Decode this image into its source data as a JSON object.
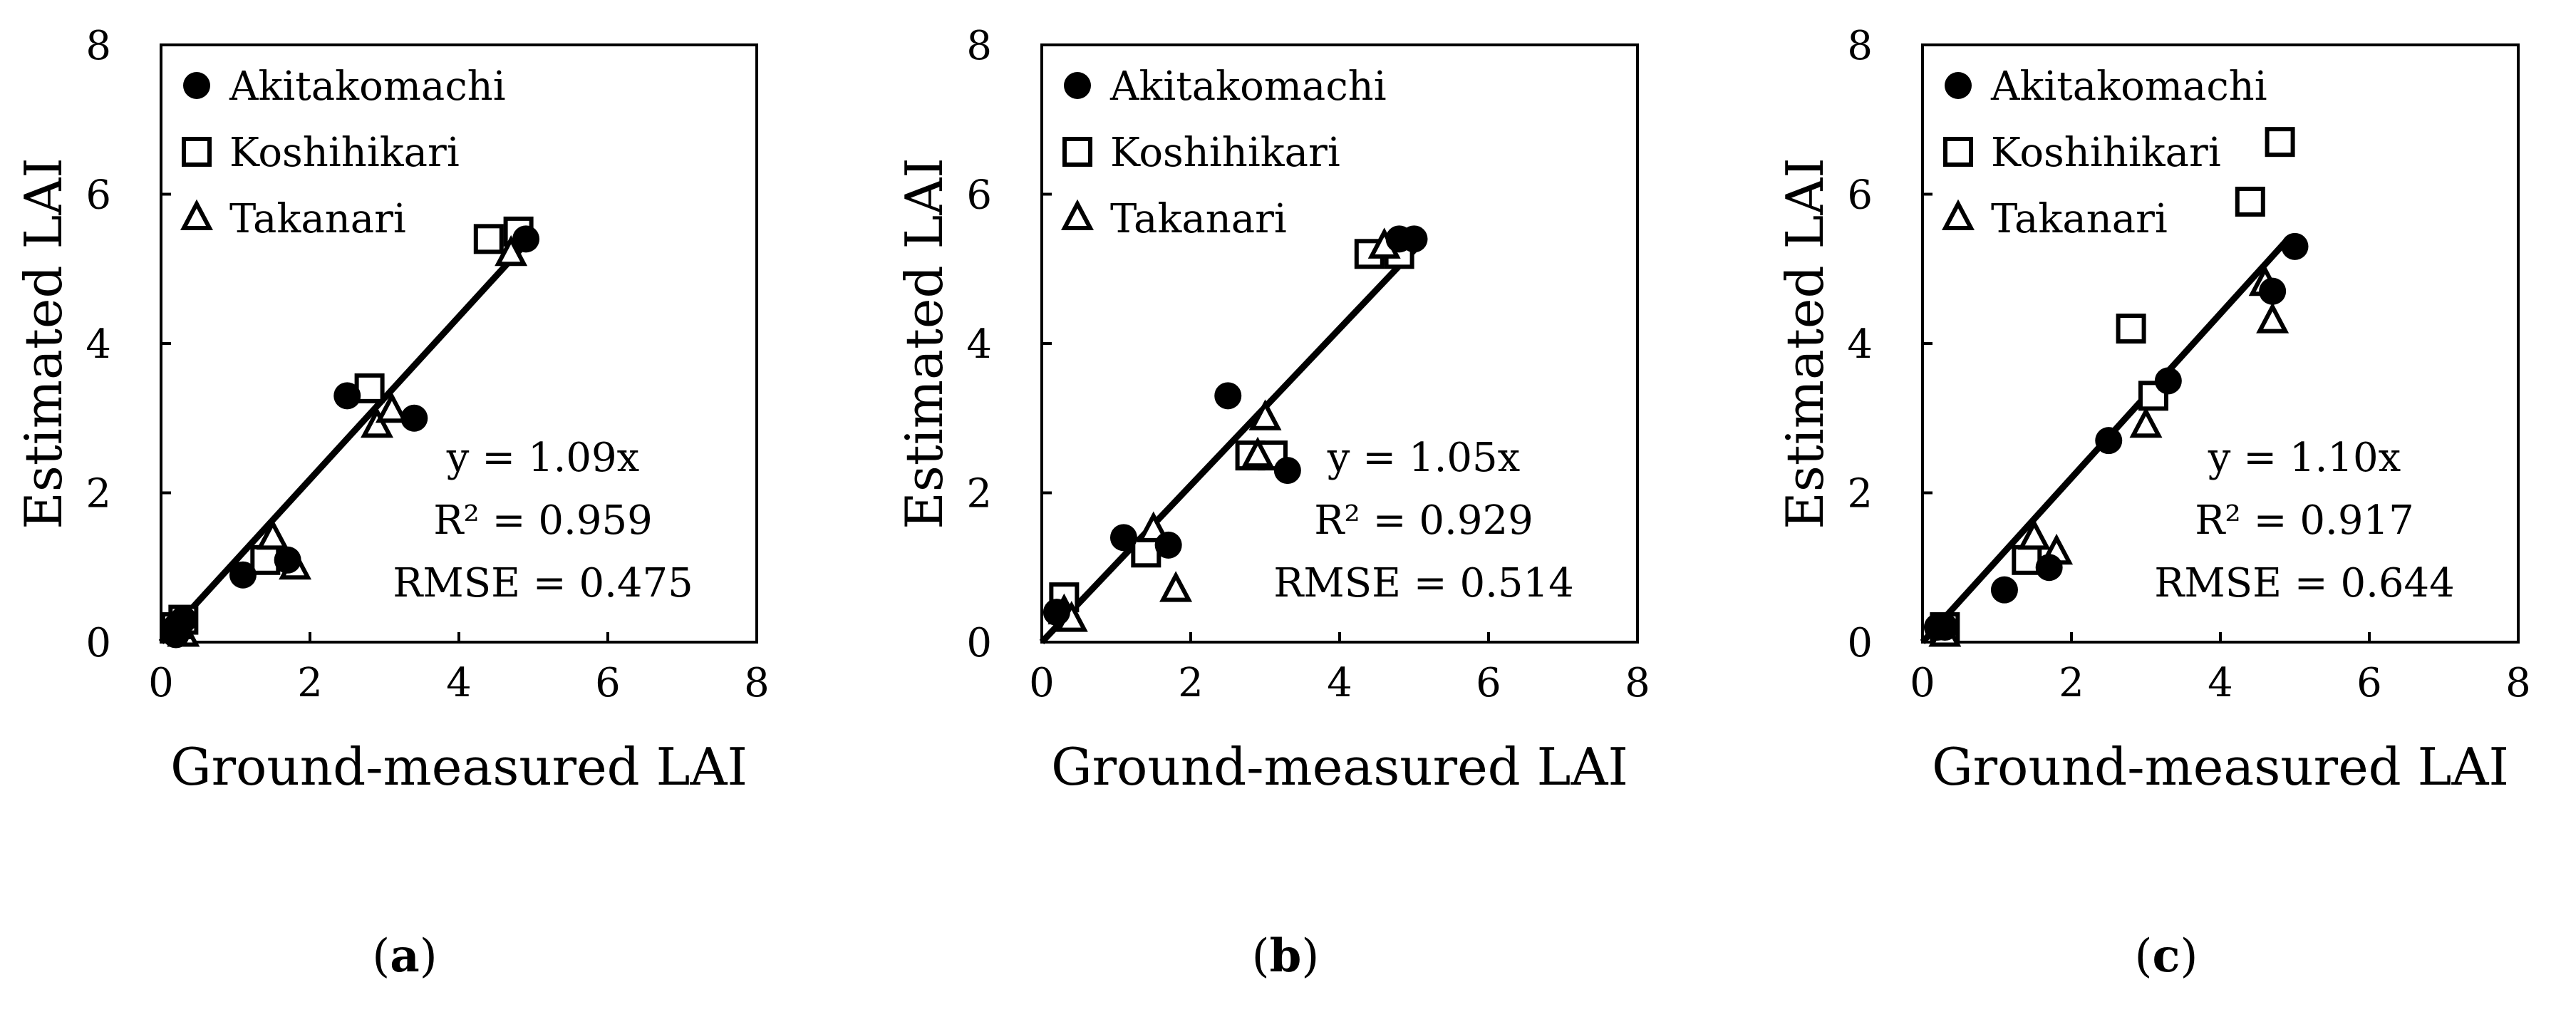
{
  "chart_data": [
    {
      "type": "scatter",
      "panel_label": "a",
      "xlabel": "Ground-measured LAI",
      "ylabel": "Estimated LAI",
      "xlim": [
        0,
        8
      ],
      "ylim": [
        0,
        8
      ],
      "xticks": [
        "0",
        "2",
        "4",
        "6",
        "8"
      ],
      "yticks": [
        "0",
        "2",
        "4",
        "6",
        "8"
      ],
      "legend_position": "top-left",
      "series": [
        {
          "name": "Akitakomachi",
          "marker": "filled-circle",
          "points": [
            [
              0.2,
              0.2
            ],
            [
              0.3,
              0.3
            ],
            [
              0.2,
              0.1
            ],
            [
              1.1,
              0.9
            ],
            [
              1.7,
              1.1
            ],
            [
              2.5,
              3.3
            ],
            [
              3.4,
              3.0
            ],
            [
              4.9,
              5.4
            ]
          ]
        },
        {
          "name": "Koshihikari",
          "marker": "open-square",
          "points": [
            [
              0.3,
              0.3
            ],
            [
              0.2,
              0.2
            ],
            [
              1.4,
              1.1
            ],
            [
              2.8,
              3.4
            ],
            [
              4.4,
              5.4
            ],
            [
              4.8,
              5.5
            ]
          ]
        },
        {
          "name": "Takanari",
          "marker": "open-triangle",
          "points": [
            [
              0.3,
              0.1
            ],
            [
              0.2,
              0.2
            ],
            [
              1.5,
              1.4
            ],
            [
              1.8,
              1.0
            ],
            [
              2.9,
              2.9
            ],
            [
              3.1,
              3.1
            ],
            [
              4.7,
              5.2
            ]
          ]
        }
      ],
      "fit": {
        "slope": 1.09,
        "x_range": [
          0,
          4.9
        ]
      },
      "annotations": [
        "y = 1.09x",
        "R² = 0.959",
        "RMSE = 0.475"
      ]
    },
    {
      "type": "scatter",
      "panel_label": "b",
      "xlabel": "Ground-measured LAI",
      "ylabel": "Estimated LAI",
      "xlim": [
        0,
        8
      ],
      "ylim": [
        0,
        8
      ],
      "xticks": [
        "0",
        "2",
        "4",
        "6",
        "8"
      ],
      "yticks": [
        "0",
        "2",
        "4",
        "6",
        "8"
      ],
      "legend_position": "top-left",
      "series": [
        {
          "name": "Akitakomachi",
          "marker": "filled-circle",
          "points": [
            [
              0.2,
              0.4
            ],
            [
              1.1,
              1.4
            ],
            [
              1.7,
              1.3
            ],
            [
              2.5,
              3.3
            ],
            [
              3.3,
              2.3
            ],
            [
              4.8,
              5.4
            ],
            [
              5.0,
              5.4
            ]
          ]
        },
        {
          "name": "Koshihikari",
          "marker": "open-square",
          "points": [
            [
              0.3,
              0.6
            ],
            [
              1.4,
              1.2
            ],
            [
              2.8,
              2.5
            ],
            [
              3.1,
              2.5
            ],
            [
              4.4,
              5.2
            ],
            [
              4.8,
              5.2
            ]
          ]
        },
        {
          "name": "Takanari",
          "marker": "open-triangle",
          "points": [
            [
              0.3,
              0.4
            ],
            [
              0.4,
              0.3
            ],
            [
              1.5,
              1.5
            ],
            [
              1.8,
              0.7
            ],
            [
              2.9,
              2.5
            ],
            [
              3.0,
              3.0
            ],
            [
              4.6,
              5.3
            ]
          ]
        }
      ],
      "fit": {
        "slope": 1.05,
        "x_range": [
          0,
          5.0
        ]
      },
      "annotations": [
        "y = 1.05x",
        "R² = 0.929",
        "RMSE = 0.514"
      ]
    },
    {
      "type": "scatter",
      "panel_label": "c",
      "xlabel": "Ground-measured LAI",
      "ylabel": "Estimated LAI",
      "xlim": [
        0,
        8
      ],
      "ylim": [
        0,
        8
      ],
      "xticks": [
        "0",
        "2",
        "4",
        "6",
        "8"
      ],
      "yticks": [
        "0",
        "2",
        "4",
        "6",
        "8"
      ],
      "legend_position": "top-left",
      "series": [
        {
          "name": "Akitakomachi",
          "marker": "filled-circle",
          "points": [
            [
              0.2,
              0.2
            ],
            [
              0.3,
              0.2
            ],
            [
              1.1,
              0.7
            ],
            [
              1.7,
              1.0
            ],
            [
              2.5,
              2.7
            ],
            [
              3.3,
              3.5
            ],
            [
              4.7,
              4.7
            ],
            [
              5.0,
              5.3
            ]
          ]
        },
        {
          "name": "Koshihikari",
          "marker": "open-square",
          "points": [
            [
              0.3,
              0.2
            ],
            [
              1.4,
              1.1
            ],
            [
              2.8,
              4.2
            ],
            [
              3.1,
              3.3
            ],
            [
              4.4,
              5.9
            ],
            [
              4.8,
              6.7
            ]
          ]
        },
        {
          "name": "Takanari",
          "marker": "open-triangle",
          "points": [
            [
              0.3,
              0.1
            ],
            [
              1.5,
              1.4
            ],
            [
              1.8,
              1.2
            ],
            [
              3.0,
              2.9
            ],
            [
              4.6,
              4.8
            ],
            [
              4.7,
              4.3
            ]
          ]
        }
      ],
      "fit": {
        "slope": 1.1,
        "x_range": [
          0,
          4.9
        ]
      },
      "annotations": [
        "y = 1.10x",
        "R² = 0.917",
        "RMSE = 0.644"
      ]
    }
  ]
}
